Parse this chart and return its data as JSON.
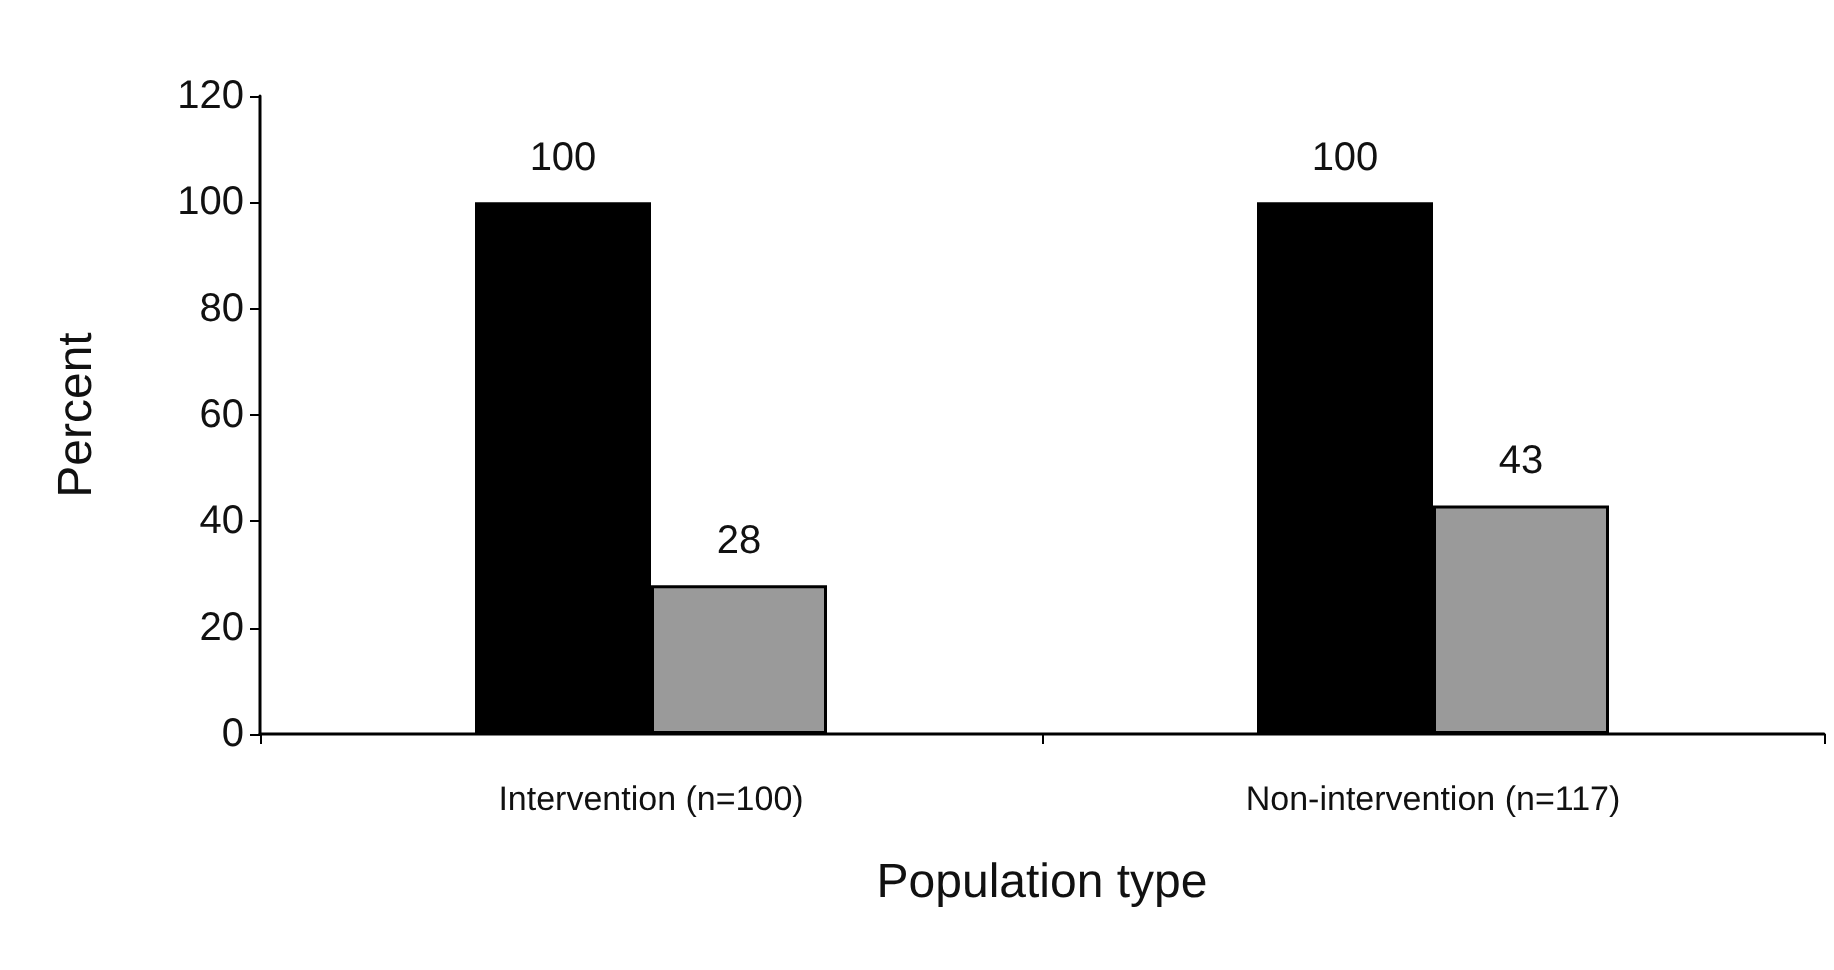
{
  "chart_data": {
    "type": "bar",
    "xlabel": "Population type",
    "ylabel": "Percent",
    "categories": [
      "Intervention (n=100)",
      "Non-intervention (n=117)"
    ],
    "series": [
      {
        "color": "#000000",
        "values": [
          100,
          100
        ]
      },
      {
        "color": "#9a9a9a",
        "values": [
          28,
          43
        ]
      }
    ],
    "ylim": [
      0,
      120
    ],
    "yticks": [
      0,
      20,
      40,
      60,
      80,
      100,
      120
    ],
    "grid": false,
    "data_labels": true
  }
}
